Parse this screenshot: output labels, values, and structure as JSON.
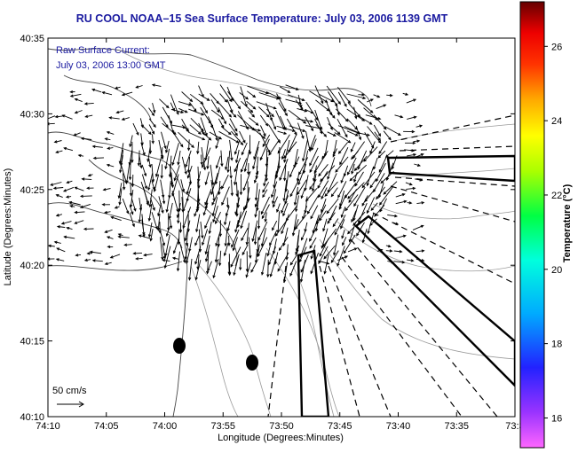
{
  "title": "RU COOL  NOAA–15  Sea Surface Temperature:  July 03, 2006 1139 GMT",
  "legend": {
    "line1": "Raw Surface Current:",
    "line2": "July 03, 2006 13:00 GMT"
  },
  "scale_bar": {
    "label": "50 cm/s"
  },
  "axes": {
    "xlabel": "Longitude (Degrees:Minutes)",
    "ylabel": "Latitude (Degrees:Minutes)",
    "x_ticks": [
      "74:10",
      "74:05",
      "74:00",
      "73:55",
      "73:50",
      "73:45",
      "73:40",
      "73:35",
      "73:3"
    ],
    "y_ticks": [
      "40:35",
      "40:30",
      "40:25",
      "40:20",
      "40:15",
      "40:10"
    ]
  },
  "colorbar": {
    "title": "Temperature (°C)",
    "labels": [
      "26",
      "24",
      "22",
      "20",
      "18",
      "16"
    ],
    "values": [
      26,
      24,
      22,
      20,
      18,
      16
    ],
    "range": [
      15.2,
      27.2
    ]
  },
  "colors": {
    "title": "#1a1aa0",
    "land_outline": "#555555",
    "contour": "#999999",
    "vectors": "#000000"
  },
  "icons": [
    "buoy-marker",
    "vector-arrow",
    "shipping-lane"
  ]
}
